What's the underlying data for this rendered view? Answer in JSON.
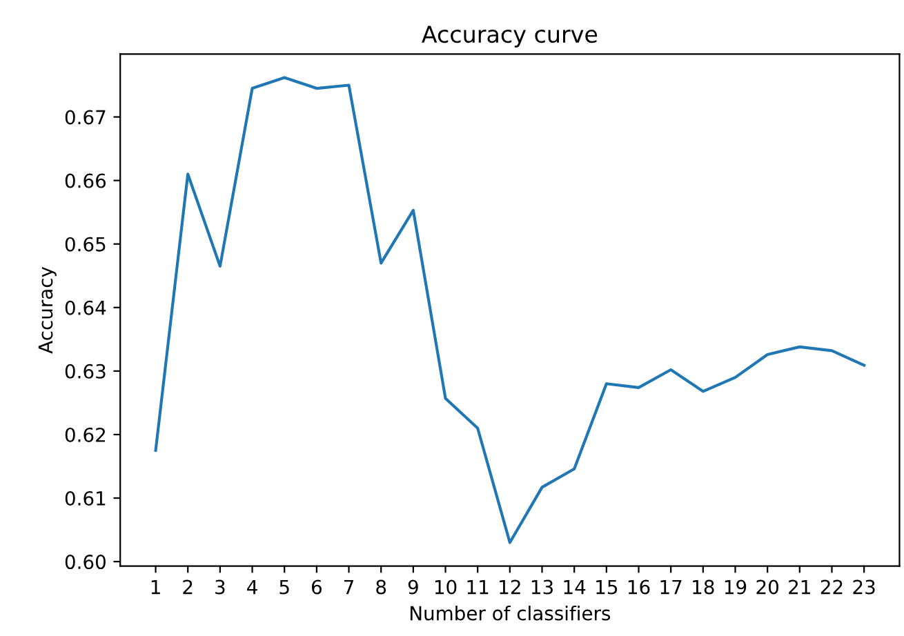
{
  "chart_data": {
    "type": "line",
    "title": "Accuracy curve",
    "xlabel": "Number of classifiers",
    "ylabel": "Accuracy",
    "x": [
      1,
      2,
      3,
      4,
      5,
      6,
      7,
      8,
      9,
      10,
      11,
      12,
      13,
      14,
      15,
      16,
      17,
      18,
      19,
      20,
      21,
      22,
      23
    ],
    "series": [
      {
        "color": "#1f77b4",
        "values": [
          0.6175,
          0.661,
          0.6465,
          0.6745,
          0.6762,
          0.6745,
          0.675,
          0.647,
          0.6553,
          0.6257,
          0.621,
          0.603,
          0.6117,
          0.6146,
          0.628,
          0.6274,
          0.6302,
          0.6268,
          0.629,
          0.6326,
          0.6338,
          0.6332,
          0.6309
        ]
      }
    ],
    "xlim": [
      -0.1,
      24.1
    ],
    "xticks": [
      1,
      2,
      3,
      4,
      5,
      6,
      7,
      8,
      9,
      10,
      11,
      12,
      13,
      14,
      15,
      16,
      17,
      18,
      19,
      20,
      21,
      22,
      23
    ],
    "ylim": [
      0.5993,
      0.6799
    ],
    "yticks": [
      {
        "value": 0.6,
        "label": "0.60"
      },
      0.61,
      0.62,
      0.63,
      0.64,
      0.65,
      0.66,
      0.67
    ],
    "grid": false,
    "legend": false,
    "marker": "none",
    "line_style": "solid"
  }
}
